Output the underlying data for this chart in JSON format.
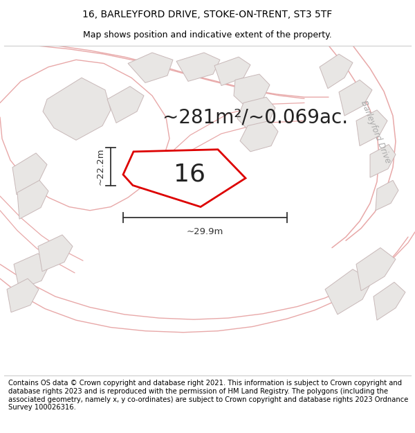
{
  "title_line1": "16, BARLEYFORD DRIVE, STOKE-ON-TRENT, ST3 5TF",
  "title_line2": "Map shows position and indicative extent of the property.",
  "footer_text": "Contains OS data © Crown copyright and database right 2021. This information is subject to Crown copyright and database rights 2023 and is reproduced with the permission of HM Land Registry. The polygons (including the associated geometry, namely x, y co-ordinates) are subject to Crown copyright and database rights 2023 Ordnance Survey 100026316.",
  "area_text": "~281m²/~0.069ac.",
  "property_number": "16",
  "dim_width": "~29.9m",
  "dim_height": "~22.2m",
  "bg_color": "#ffffff",
  "map_bg_color": "#f7f5f3",
  "plot_outline_color": "#dd0000",
  "road_line_color": "#e8a8a8",
  "building_fill_color": "#e8e6e4",
  "building_outline_color": "#c8b8b8",
  "road_label": "Barleyford Drive",
  "road_label_color": "#aaaaaa",
  "title_fontsize": 10,
  "subtitle_fontsize": 9,
  "footer_fontsize": 7.2,
  "area_fontsize": 20,
  "number_fontsize": 26,
  "dim_fontsize": 9.5
}
